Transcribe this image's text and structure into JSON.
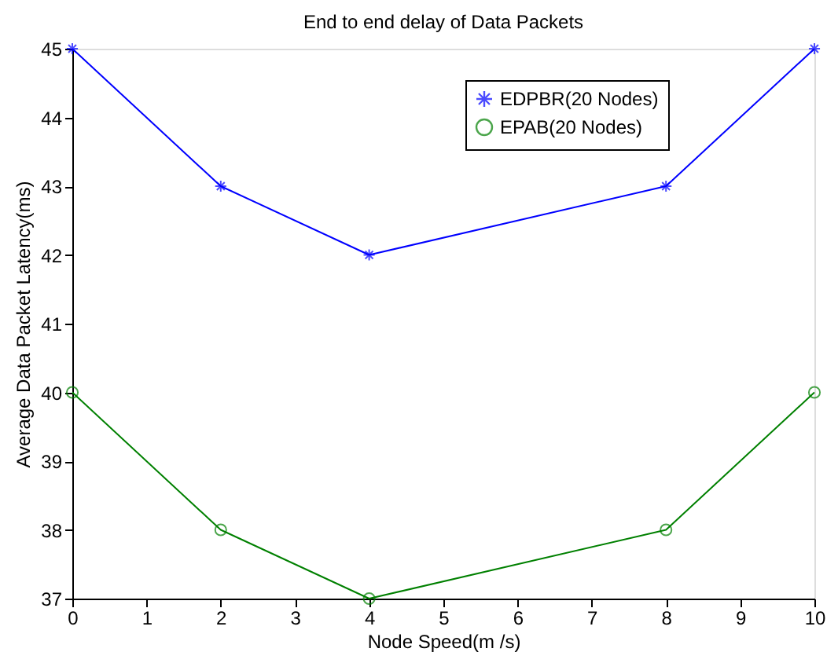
{
  "chart_data": {
    "type": "line",
    "title": "End to end delay of Data Packets",
    "xlabel": "Node Speed(m /s)",
    "ylabel": "Average Data Packet Latency(ms)",
    "x": [
      0,
      2,
      4,
      8,
      10
    ],
    "series": [
      {
        "name": "EDPBR(20 Nodes)",
        "color": "#0000ff",
        "marker": "cross",
        "values": [
          45,
          43,
          42,
          43,
          45
        ]
      },
      {
        "name": "EPAB(20 Nodes)",
        "color": "#008000",
        "marker": "circle",
        "values": [
          40,
          38,
          37,
          38,
          40
        ]
      }
    ],
    "xlim": [
      0,
      10
    ],
    "xticks": [
      0,
      1,
      2,
      3,
      4,
      5,
      6,
      7,
      8,
      9,
      10
    ],
    "ylim": [
      37,
      45
    ],
    "yticks": [
      37,
      38,
      39,
      40,
      41,
      42,
      43,
      44,
      45
    ],
    "grid": false,
    "legend": "top right",
    "line_style": "solid"
  }
}
